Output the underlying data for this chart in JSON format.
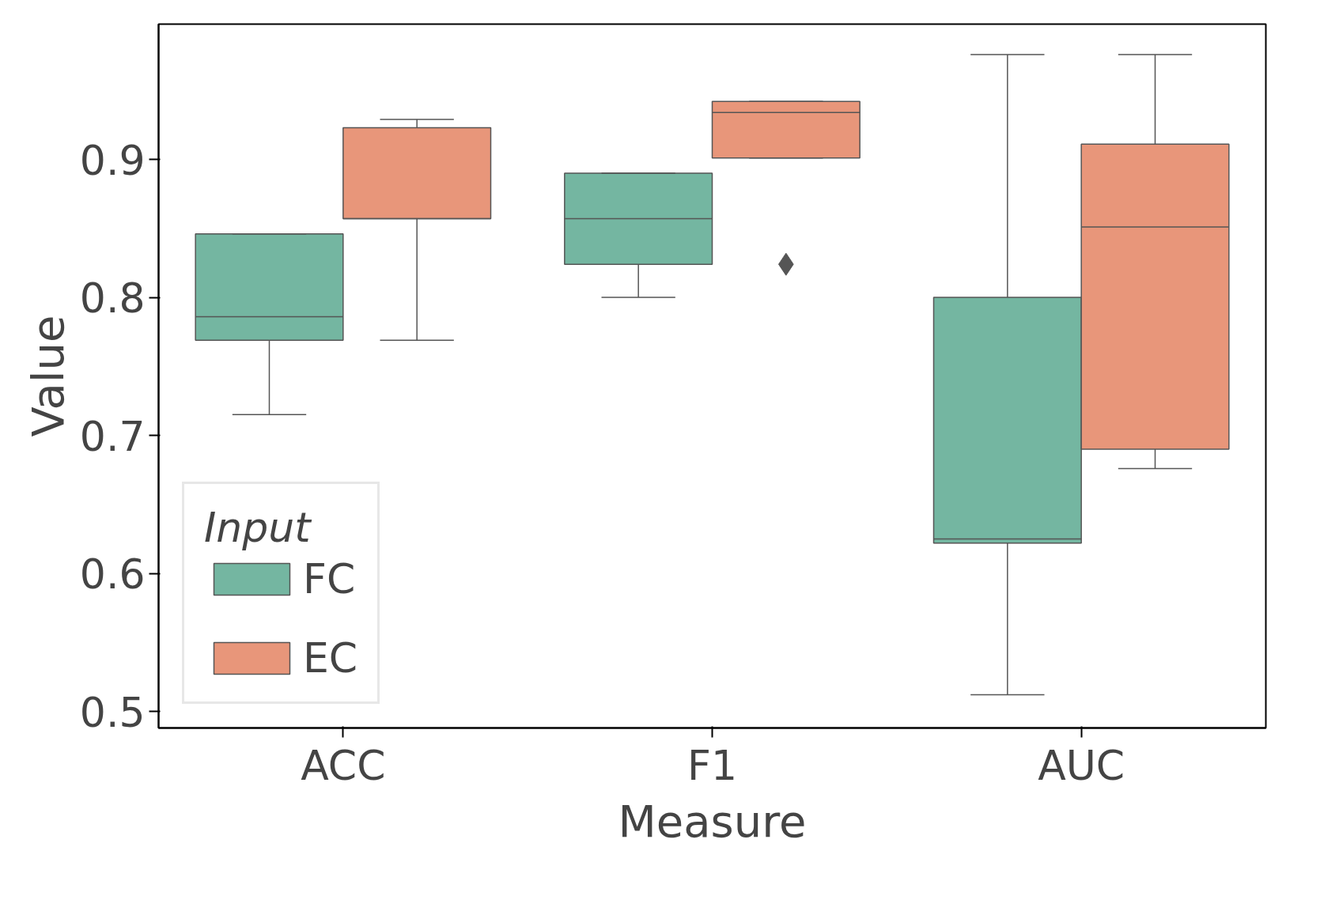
{
  "chart_data": {
    "type": "box",
    "xlabel": "Measure",
    "ylabel": "Value",
    "legend_title": "Input",
    "categories": [
      "ACC",
      "F1",
      "AUC"
    ],
    "series": [
      {
        "name": "FC",
        "color": "#74b6a1",
        "boxes": [
          {
            "low": 0.715,
            "q1": 0.769,
            "median": 0.786,
            "q3": 0.846,
            "high": 0.846
          },
          {
            "low": 0.8,
            "q1": 0.824,
            "median": 0.857,
            "q3": 0.89,
            "high": 0.89
          },
          {
            "low": 0.512,
            "q1": 0.622,
            "median": 0.625,
            "q3": 0.8,
            "high": 0.976
          }
        ]
      },
      {
        "name": "EC",
        "color": "#e8967a",
        "boxes": [
          {
            "low": 0.769,
            "q1": 0.857,
            "median": 0.857,
            "q3": 0.923,
            "high": 0.929
          },
          {
            "low": 0.901,
            "q1": 0.901,
            "median": 0.934,
            "q3": 0.942,
            "high": 0.942,
            "outliers": [
              0.824
            ]
          },
          {
            "low": 0.676,
            "q1": 0.69,
            "median": 0.851,
            "q3": 0.911,
            "high": 0.976
          }
        ]
      }
    ],
    "ylim": [
      0.488,
      0.998
    ],
    "yticks": [
      0.5,
      0.6,
      0.7,
      0.8,
      0.9
    ],
    "grid": false,
    "legend": "bottom left",
    "marker": "diamond"
  }
}
